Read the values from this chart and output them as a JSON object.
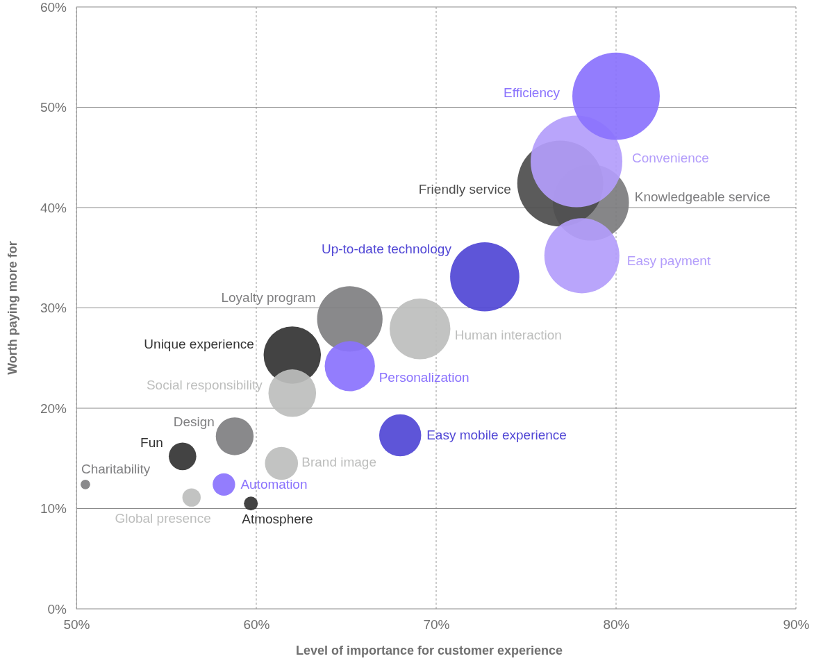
{
  "chart_data": {
    "type": "bubble",
    "xlabel": "Level of importance for customer experience",
    "ylabel": "Worth paying more for",
    "xlim": [
      50,
      90
    ],
    "ylim": [
      0,
      60
    ],
    "xticks": [
      {
        "value": 50,
        "label": "50%"
      },
      {
        "value": 60,
        "label": "60%"
      },
      {
        "value": 70,
        "label": "70%"
      },
      {
        "value": 80,
        "label": "80%"
      },
      {
        "value": 90,
        "label": "90%"
      }
    ],
    "yticks": [
      {
        "value": 0,
        "label": "0%"
      },
      {
        "value": 10,
        "label": "10%"
      },
      {
        "value": 20,
        "label": "20%"
      },
      {
        "value": 30,
        "label": "30%"
      },
      {
        "value": 40,
        "label": "40%"
      },
      {
        "value": 50,
        "label": "50%"
      },
      {
        "value": 60,
        "label": "60%"
      }
    ],
    "grid": true,
    "legend": false,
    "series": [
      {
        "name": "Knowledgeable service",
        "color": "#7c7c7e",
        "x": [
          78.6
        ],
        "values": [
          40.5
        ],
        "sizes": [
          0.69
        ]
      },
      {
        "name": "Friendly service",
        "color": "#4d4d4d",
        "x": [
          76.9
        ],
        "values": [
          42.4
        ],
        "sizes": [
          0.88
        ]
      },
      {
        "name": "Convenience",
        "color": "#b39dfb",
        "x": [
          77.8
        ],
        "values": [
          44.6
        ],
        "sizes": [
          1
        ]
      },
      {
        "name": "Efficiency",
        "color": "#8a72fd",
        "x": [
          80.0
        ],
        "values": [
          51.1
        ],
        "sizes": [
          0.91
        ]
      },
      {
        "name": "Easy payment",
        "color": "#b39dfb",
        "x": [
          78.1
        ],
        "values": [
          35.2
        ],
        "sizes": [
          0.67
        ]
      },
      {
        "name": "Up-to-date technology",
        "color": "#5046d5",
        "x": [
          72.7
        ],
        "values": [
          33.1
        ],
        "sizes": [
          0.57
        ]
      },
      {
        "name": "Loyalty program",
        "color": "#7f7f81",
        "x": [
          65.2
        ],
        "values": [
          28.9
        ],
        "sizes": [
          0.51
        ]
      },
      {
        "name": "Human interaction",
        "color": "#bdbebd",
        "x": [
          69.1
        ],
        "values": [
          27.9
        ],
        "sizes": [
          0.44
        ]
      },
      {
        "name": "Unique experience",
        "color": "#333333",
        "x": [
          62.0
        ],
        "values": [
          25.3
        ],
        "sizes": [
          0.39
        ]
      },
      {
        "name": "Personalization",
        "color": "#8a72fd",
        "x": [
          65.2
        ],
        "values": [
          24.2
        ],
        "sizes": [
          0.3
        ]
      },
      {
        "name": "Social responsibility",
        "color": "#bdbebd",
        "x": [
          62.0
        ],
        "values": [
          21.5
        ],
        "sizes": [
          0.27
        ]
      },
      {
        "name": "Design",
        "color": "#7f7f81",
        "x": [
          58.8
        ],
        "values": [
          17.2
        ],
        "sizes": [
          0.17
        ]
      },
      {
        "name": "Easy mobile experience",
        "color": "#5046d5",
        "x": [
          68.0
        ],
        "values": [
          17.3
        ],
        "sizes": [
          0.21
        ]
      },
      {
        "name": "Fun",
        "color": "#333333",
        "x": [
          55.9
        ],
        "values": [
          15.2
        ],
        "sizes": [
          0.09
        ]
      },
      {
        "name": "Brand image",
        "color": "#bdbebd",
        "x": [
          61.4
        ],
        "values": [
          14.5
        ],
        "sizes": [
          0.13
        ]
      },
      {
        "name": "Charitability",
        "color": "#7f7f81",
        "x": [
          50.5
        ],
        "values": [
          12.4
        ],
        "sizes": [
          0.011
        ]
      },
      {
        "name": "Global presence",
        "color": "#bdbebd",
        "x": [
          56.4
        ],
        "values": [
          11.1
        ],
        "sizes": [
          0.04
        ]
      },
      {
        "name": "Automation",
        "color": "#8a72fd",
        "x": [
          58.2
        ],
        "values": [
          12.4
        ],
        "sizes": [
          0.06
        ]
      },
      {
        "name": "Atmosphere",
        "color": "#333333",
        "x": [
          59.7
        ],
        "values": [
          10.5
        ],
        "sizes": [
          0.023
        ]
      }
    ]
  }
}
